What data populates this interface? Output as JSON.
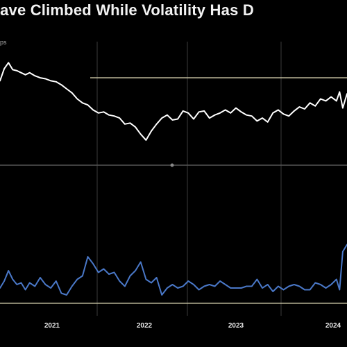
{
  "title": "Have Climbed While Volatility Has D",
  "unit_label": "ps",
  "colors": {
    "background": "#000000",
    "spread_line": "#ffffff",
    "volatility_line": "#4a78c8",
    "reference_line": "#d8d2b0",
    "gridline": "#333333",
    "divider": "#555555"
  },
  "chart_data": [
    {
      "type": "line",
      "title": "",
      "ylabel": "",
      "xlabel": "",
      "x_ticks": [
        "2021",
        "2022",
        "2023",
        "2024"
      ],
      "ylim": [
        0,
        100
      ],
      "xlim": [
        2020.92,
        2024.2
      ],
      "reference_line": 71,
      "series": [
        {
          "name": "",
          "x": [
            2020.92,
            2020.96,
            2021.0,
            2021.04,
            2021.08,
            2021.12,
            2021.16,
            2021.2,
            2021.25,
            2021.3,
            2021.35,
            2021.4,
            2021.45,
            2021.5,
            2021.55,
            2021.6,
            2021.65,
            2021.7,
            2021.75,
            2021.8,
            2021.85,
            2021.9,
            2021.95,
            2022.0,
            2022.05,
            2022.1,
            2022.15,
            2022.2,
            2022.25,
            2022.3,
            2022.35,
            2022.4,
            2022.45,
            2022.5,
            2022.55,
            2022.6,
            2022.65,
            2022.7,
            2022.75,
            2022.8,
            2022.85,
            2022.9,
            2022.95,
            2023.0,
            2023.05,
            2023.1,
            2023.15,
            2023.2,
            2023.25,
            2023.3,
            2023.35,
            2023.4,
            2023.45,
            2023.5,
            2023.55,
            2023.6,
            2023.65,
            2023.7,
            2023.75,
            2023.8,
            2023.85,
            2023.9,
            2023.95,
            2024.0,
            2024.05,
            2024.1,
            2024.13,
            2024.16,
            2024.2
          ],
          "y": [
            68,
            80,
            86,
            79,
            78,
            76,
            74,
            76,
            73,
            71,
            70,
            68,
            67,
            64,
            60,
            56,
            50,
            46,
            44,
            39,
            36,
            37,
            34,
            33,
            31,
            25,
            26,
            22,
            15,
            9,
            18,
            25,
            31,
            34,
            29,
            30,
            38,
            36,
            30,
            37,
            38,
            31,
            34,
            36,
            39,
            36,
            41,
            37,
            34,
            33,
            28,
            31,
            27,
            36,
            39,
            35,
            33,
            38,
            42,
            40,
            46,
            43,
            50,
            48,
            52,
            48,
            57,
            41,
            55
          ]
        }
      ]
    },
    {
      "type": "line",
      "title": "",
      "ylabel": "",
      "xlabel": "",
      "x_ticks": [
        "2021",
        "2022",
        "2023",
        "2024"
      ],
      "ylim": [
        0,
        100
      ],
      "xlim": [
        2020.92,
        2024.2
      ],
      "series": [
        {
          "name": "",
          "x": [
            2020.92,
            2020.96,
            2021.0,
            2021.04,
            2021.08,
            2021.12,
            2021.16,
            2021.2,
            2021.25,
            2021.3,
            2021.35,
            2021.4,
            2021.45,
            2021.5,
            2021.55,
            2021.6,
            2021.65,
            2021.7,
            2021.75,
            2021.8,
            2021.85,
            2021.9,
            2021.95,
            2022.0,
            2022.05,
            2022.1,
            2022.15,
            2022.2,
            2022.25,
            2022.3,
            2022.35,
            2022.4,
            2022.45,
            2022.5,
            2022.55,
            2022.6,
            2022.65,
            2022.7,
            2022.75,
            2022.8,
            2022.85,
            2022.9,
            2022.95,
            2023.0,
            2023.05,
            2023.1,
            2023.15,
            2023.2,
            2023.25,
            2023.3,
            2023.35,
            2023.4,
            2023.45,
            2023.5,
            2023.55,
            2023.6,
            2023.65,
            2023.7,
            2023.75,
            2023.8,
            2023.85,
            2023.9,
            2023.95,
            2024.0,
            2024.05,
            2024.1,
            2024.13,
            2024.16,
            2024.2
          ],
          "y": [
            20,
            28,
            40,
            30,
            24,
            26,
            18,
            26,
            22,
            32,
            24,
            20,
            28,
            14,
            12,
            22,
            30,
            34,
            56,
            48,
            38,
            42,
            36,
            38,
            28,
            22,
            34,
            40,
            50,
            30,
            26,
            32,
            12,
            20,
            24,
            20,
            22,
            28,
            24,
            18,
            22,
            24,
            22,
            28,
            24,
            20,
            20,
            20,
            22,
            22,
            30,
            20,
            24,
            16,
            22,
            18,
            22,
            24,
            22,
            18,
            18,
            26,
            24,
            20,
            24,
            30,
            18,
            62,
            70
          ]
        }
      ]
    }
  ]
}
